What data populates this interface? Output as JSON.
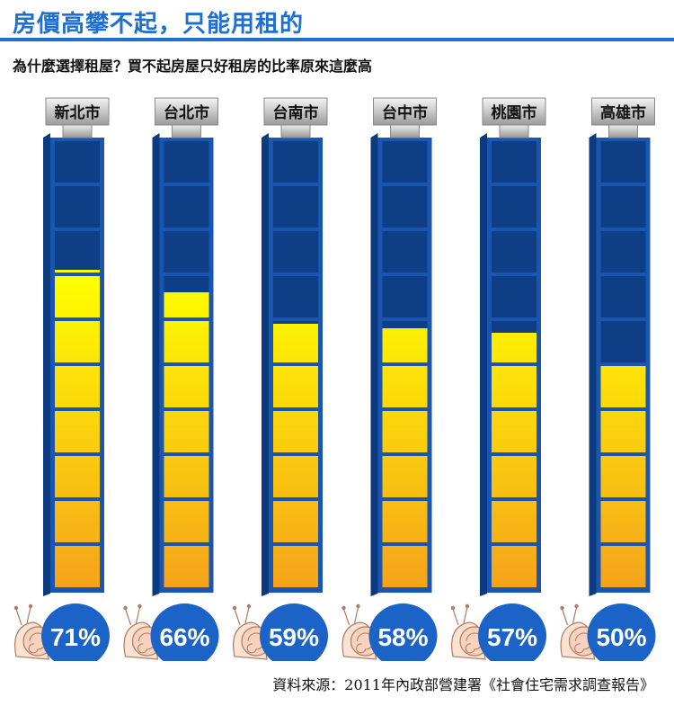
{
  "header": {
    "title": "房價高攀不起，只能用租的",
    "subtitle": "為什麼選擇租屋？買不起房屋只好租房的比率原來這麼高"
  },
  "footer": {
    "source": "資料來源：2011年內政部營建署《社會住宅需求調查報告》"
  },
  "colors": {
    "accent": "#1f6fd1",
    "tube_frame": "#1a56b0",
    "cell_empty": "#0d3e86",
    "fill_top": "#ffff00",
    "fill_bottom": "#f5a31a",
    "bubble": "#1b63c6"
  },
  "chart_data": {
    "type": "bar",
    "categories": [
      "新北市",
      "台北市",
      "台南市",
      "台中市",
      "桃園市",
      "高雄市"
    ],
    "values": [
      71,
      66,
      59,
      58,
      57,
      50
    ],
    "value_labels": [
      "71%",
      "66%",
      "59%",
      "58%",
      "57%",
      "50%"
    ],
    "ylim": [
      0,
      100
    ]
  }
}
